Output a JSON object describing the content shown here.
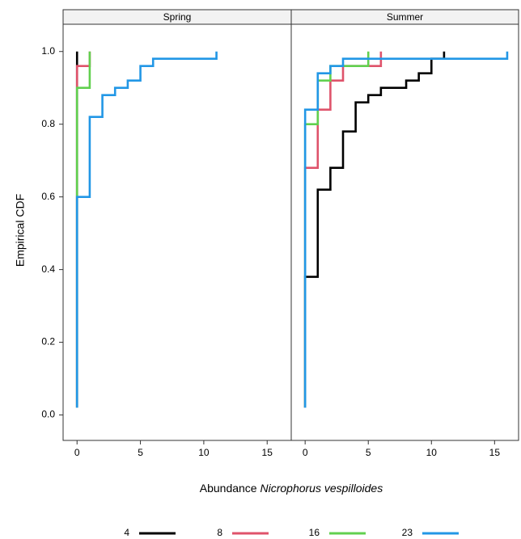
{
  "chart_data": {
    "type": "step",
    "y_label": "Empirical CDF",
    "x_label": [
      "Abundance",
      "Nicrophorus vespilloides"
    ],
    "xlim": [
      -1.1,
      16.9
    ],
    "ylim": [
      -0.07,
      1.075
    ],
    "xticks": [
      0,
      5,
      10,
      15
    ],
    "yticks": [
      {
        "value": 0,
        "label": "0.0"
      },
      {
        "value": 0.2,
        "label": "0.2"
      },
      {
        "value": 0.4,
        "label": "0.4"
      },
      {
        "value": 0.6,
        "label": "0.6"
      },
      {
        "value": 0.8,
        "label": "0.8"
      },
      {
        "value": 1.0,
        "label": "1.0"
      }
    ],
    "legend": "bottom",
    "panels": [
      {
        "title": "Spring",
        "series": [
          {
            "name": "4",
            "color": "#000000",
            "x": [
              0,
              0
            ],
            "values": [
              0.02,
              1.0
            ]
          },
          {
            "name": "8",
            "color": "#DF536B",
            "x": [
              0,
              0,
              1
            ],
            "values": [
              0.02,
              0.96,
              1.0
            ]
          },
          {
            "name": "16",
            "color": "#61D04F",
            "x": [
              0,
              0,
              1
            ],
            "values": [
              0.02,
              0.9,
              1.0
            ]
          },
          {
            "name": "23",
            "color": "#2297E6",
            "x": [
              0,
              0,
              1,
              2,
              3,
              4,
              5,
              6,
              11
            ],
            "values": [
              0.02,
              0.6,
              0.82,
              0.88,
              0.9,
              0.92,
              0.96,
              0.98,
              1.0
            ]
          }
        ]
      },
      {
        "title": "Summer",
        "series": [
          {
            "name": "4",
            "color": "#000000",
            "x": [
              0,
              0,
              1,
              2,
              3,
              4,
              5,
              6,
              8,
              9,
              10,
              11
            ],
            "values": [
              0.02,
              0.38,
              0.62,
              0.68,
              0.78,
              0.86,
              0.88,
              0.9,
              0.92,
              0.94,
              0.98,
              1.0
            ]
          },
          {
            "name": "8",
            "color": "#DF536B",
            "x": [
              0,
              0,
              1,
              2,
              3,
              6
            ],
            "values": [
              0.02,
              0.68,
              0.84,
              0.92,
              0.96,
              1.0
            ]
          },
          {
            "name": "16",
            "color": "#61D04F",
            "x": [
              0,
              0,
              1,
              2,
              5
            ],
            "values": [
              0.02,
              0.8,
              0.92,
              0.96,
              1.0
            ]
          },
          {
            "name": "23",
            "color": "#2297E6",
            "x": [
              0,
              0,
              1,
              2,
              3,
              16
            ],
            "values": [
              0.02,
              0.84,
              0.94,
              0.96,
              0.98,
              1.0
            ]
          }
        ]
      }
    ]
  }
}
